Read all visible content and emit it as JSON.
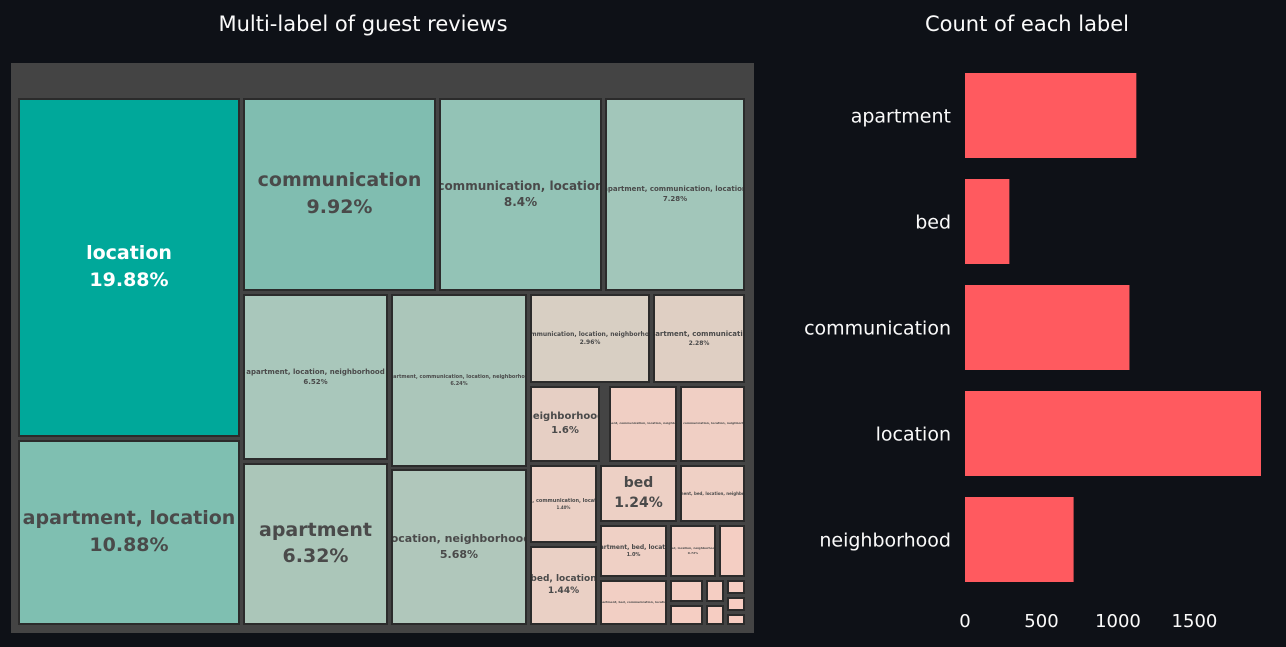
{
  "titles": {
    "treemap": "Multi-label of guest reviews",
    "bar": "Count of each label"
  },
  "colors": {
    "background": "#0e1117",
    "bar": "#ff5a5f",
    "treemap_frame": "#444444",
    "teal_dark": "#00a89a",
    "teal_light": "#7fbfb1",
    "neutral": "#d9cfc4",
    "peach": "#f3d0c3"
  },
  "chart_data": [
    {
      "type": "treemap",
      "title": "Multi-label of guest reviews",
      "items": [
        {
          "label": "location",
          "percent": "19.88%",
          "value": 19.88,
          "color": "#00a89a",
          "text_color": "#ffffff"
        },
        {
          "label": "apartment, location",
          "percent": "10.88%",
          "value": 10.88,
          "color": "#7fbfb1"
        },
        {
          "label": "communication",
          "percent": "9.92%",
          "value": 9.92,
          "color": "#80bdb0"
        },
        {
          "label": "communication, location",
          "percent": "8.4%",
          "value": 8.4,
          "color": "#93c3b6"
        },
        {
          "label": "apartment, communication, location",
          "percent": "7.28%",
          "value": 7.28,
          "color": "#a2c6ba"
        },
        {
          "label": "apartment, location, neighborhood",
          "percent": "6.52%",
          "value": 6.52,
          "color": "#a9c7bb"
        },
        {
          "label": "apartment",
          "percent": "6.32%",
          "value": 6.32,
          "color": "#abc6b9"
        },
        {
          "label": "apartment, communication, location, neighborhood",
          "percent": "6.24%",
          "value": 6.24,
          "color": "#abc6ba"
        },
        {
          "label": "location, neighborhood",
          "percent": "5.68%",
          "value": 5.68,
          "color": "#b0c7bb"
        },
        {
          "label": "communication, location, neighborhood",
          "percent": "2.96%",
          "value": 2.96,
          "color": "#d8cfc3"
        },
        {
          "label": "apartment, communication",
          "percent": "2.28%",
          "value": 2.28,
          "color": "#dfcfc3"
        },
        {
          "label": "neighborhood",
          "percent": "1.6%",
          "value": 1.6,
          "color": "#e6cfc4"
        },
        {
          "label": "bed, location",
          "percent": "1.44%",
          "value": 1.44,
          "color": "#ead0c5"
        },
        {
          "label": "bed, communication, location",
          "percent": "1.40%",
          "value": 1.4,
          "color": "#ebd0c5"
        },
        {
          "label": "bed",
          "percent": "1.24%",
          "value": 1.24,
          "color": "#edd0c5"
        },
        {
          "label": "apartment, bed, location",
          "percent": "1.0%",
          "value": 1.0,
          "color": "#efd0c5"
        },
        {
          "label": "apartment, bed, location, neighborhood",
          "percent": "",
          "value": 0.9,
          "color": "#efd0c5"
        },
        {
          "label": "apartment, communication, location, neighborhood",
          "percent": "",
          "value": 0.9,
          "color": "#f0cfc4"
        },
        {
          "label": "bed, communication, location, neighborhood",
          "percent": "",
          "value": 0.9,
          "color": "#f0cfc4"
        },
        {
          "label": "bed, location, neighborhood",
          "percent": "0.72%",
          "value": 0.72,
          "color": "#f1cfc4"
        },
        {
          "label": "apartment, bed, communication, location",
          "percent": "",
          "value": 0.6,
          "color": "#f2cfc4"
        },
        {
          "label": "",
          "percent": "",
          "value": 0.3,
          "color": "#f4cec3"
        },
        {
          "label": "",
          "percent": "",
          "value": 0.3,
          "color": "#f4cec3"
        },
        {
          "label": "",
          "percent": "",
          "value": 0.3,
          "color": "#f5cec3"
        },
        {
          "label": "",
          "percent": "",
          "value": 0.3,
          "color": "#f5cec3"
        },
        {
          "label": "",
          "percent": "",
          "value": 0.2,
          "color": "#f6cdc2"
        },
        {
          "label": "",
          "percent": "",
          "value": 0.2,
          "color": "#f6cdc2"
        },
        {
          "label": "",
          "percent": "",
          "value": 0.2,
          "color": "#f7cdc2"
        },
        {
          "label": "",
          "percent": "",
          "value": 0.2,
          "color": "#f7cdc2"
        }
      ]
    },
    {
      "type": "bar",
      "orientation": "horizontal",
      "title": "Count of each label",
      "categories": [
        "apartment",
        "bed",
        "communication",
        "location",
        "neighborhood"
      ],
      "values": [
        1120,
        290,
        1075,
        1935,
        710
      ],
      "xlim": [
        0,
        1935
      ],
      "xticks": [
        0,
        500,
        1000,
        1500
      ],
      "grid": false,
      "color": "#ff5a5f"
    }
  ]
}
